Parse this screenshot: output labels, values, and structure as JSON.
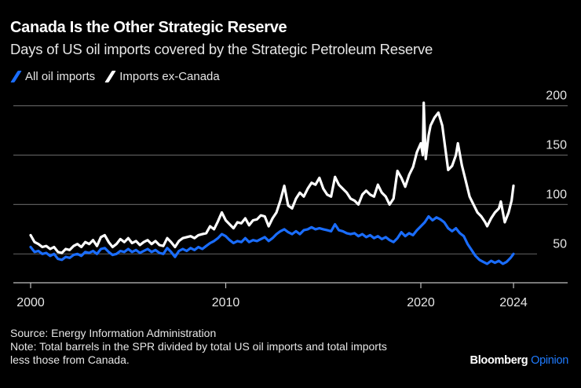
{
  "header": {
    "title": "Canada Is the Other Strategic Reserve",
    "subtitle": "Days of US oil imports covered by the Strategic Petroleum Reserve"
  },
  "legend": [
    {
      "label": "All oil imports",
      "color": "#1a6dff"
    },
    {
      "label": "Imports ex-Canada",
      "color": "#ffffff"
    }
  ],
  "footer": {
    "source": "Source: Energy Information Administration",
    "note_line1": "Note: Total barrels in the SPR divided by total US oil imports and total imports",
    "note_line2": "less those from Canada."
  },
  "brand": {
    "name": "Bloomberg",
    "suffix": "Opinion"
  },
  "chart_data": {
    "type": "line",
    "title": "Canada Is the Other Strategic Reserve",
    "subtitle": "Days of US oil imports covered by the Strategic Petroleum Reserve",
    "xlabel": "",
    "ylabel": "",
    "x_ticks": [
      {
        "value": 2000,
        "label": "2000"
      },
      {
        "value": 2010,
        "label": "2010"
      },
      {
        "value": 2020,
        "label": "2020"
      },
      {
        "value": 2024.75,
        "label": "2024"
      }
    ],
    "y_ticks": [
      50,
      100,
      150,
      200
    ],
    "ylim": [
      20,
      205
    ],
    "xlim": [
      1999.1,
      2027.5
    ],
    "grid": true,
    "y_axis_side": "right",
    "legend_position": "top-left",
    "series": [
      {
        "name": "All oil imports",
        "color": "#1a6dff",
        "points": [
          [
            2000.0,
            57
          ],
          [
            2000.2,
            52
          ],
          [
            2000.4,
            53
          ],
          [
            2000.6,
            50
          ],
          [
            2000.8,
            51
          ],
          [
            2001.0,
            48
          ],
          [
            2001.2,
            50
          ],
          [
            2001.4,
            45
          ],
          [
            2001.6,
            44
          ],
          [
            2001.8,
            47
          ],
          [
            2002.0,
            46
          ],
          [
            2002.2,
            49
          ],
          [
            2002.4,
            50
          ],
          [
            2002.6,
            48
          ],
          [
            2002.8,
            52
          ],
          [
            2003.0,
            51
          ],
          [
            2003.2,
            53
          ],
          [
            2003.4,
            50
          ],
          [
            2003.6,
            55
          ],
          [
            2003.8,
            56
          ],
          [
            2004.0,
            52
          ],
          [
            2004.2,
            49
          ],
          [
            2004.4,
            50
          ],
          [
            2004.6,
            53
          ],
          [
            2004.8,
            52
          ],
          [
            2005.0,
            55
          ],
          [
            2005.2,
            52
          ],
          [
            2005.4,
            54
          ],
          [
            2005.6,
            51
          ],
          [
            2005.8,
            53
          ],
          [
            2006.0,
            55
          ],
          [
            2006.2,
            52
          ],
          [
            2006.4,
            54
          ],
          [
            2006.6,
            51
          ],
          [
            2006.8,
            50
          ],
          [
            2007.0,
            56
          ],
          [
            2007.2,
            52
          ],
          [
            2007.4,
            47
          ],
          [
            2007.6,
            53
          ],
          [
            2007.8,
            55
          ],
          [
            2008.0,
            53
          ],
          [
            2008.2,
            56
          ],
          [
            2008.4,
            54
          ],
          [
            2008.6,
            57
          ],
          [
            2008.8,
            55
          ],
          [
            2009.0,
            58
          ],
          [
            2009.2,
            61
          ],
          [
            2009.4,
            63
          ],
          [
            2009.6,
            66
          ],
          [
            2009.8,
            70
          ],
          [
            2010.0,
            68
          ],
          [
            2010.2,
            64
          ],
          [
            2010.4,
            61
          ],
          [
            2010.6,
            63
          ],
          [
            2010.8,
            62
          ],
          [
            2011.0,
            66
          ],
          [
            2011.2,
            62
          ],
          [
            2011.4,
            64
          ],
          [
            2011.6,
            63
          ],
          [
            2011.8,
            65
          ],
          [
            2012.0,
            67
          ],
          [
            2012.2,
            63
          ],
          [
            2012.4,
            66
          ],
          [
            2012.6,
            70
          ],
          [
            2012.8,
            73
          ],
          [
            2013.0,
            75
          ],
          [
            2013.2,
            72
          ],
          [
            2013.4,
            70
          ],
          [
            2013.6,
            73
          ],
          [
            2013.8,
            70
          ],
          [
            2014.0,
            74
          ],
          [
            2014.2,
            75
          ],
          [
            2014.4,
            77
          ],
          [
            2014.6,
            75
          ],
          [
            2014.8,
            76
          ],
          [
            2015.0,
            75
          ],
          [
            2015.2,
            74
          ],
          [
            2015.4,
            73
          ],
          [
            2015.6,
            80
          ],
          [
            2015.8,
            74
          ],
          [
            2016.0,
            73
          ],
          [
            2016.2,
            71
          ],
          [
            2016.4,
            70
          ],
          [
            2016.6,
            71
          ],
          [
            2016.8,
            68
          ],
          [
            2017.0,
            70
          ],
          [
            2017.2,
            67
          ],
          [
            2017.4,
            69
          ],
          [
            2017.6,
            66
          ],
          [
            2017.8,
            68
          ],
          [
            2018.0,
            65
          ],
          [
            2018.2,
            67
          ],
          [
            2018.4,
            64
          ],
          [
            2018.6,
            62
          ],
          [
            2018.8,
            66
          ],
          [
            2019.0,
            72
          ],
          [
            2019.2,
            68
          ],
          [
            2019.4,
            71
          ],
          [
            2019.6,
            69
          ],
          [
            2019.8,
            74
          ],
          [
            2020.0,
            78
          ],
          [
            2020.2,
            82
          ],
          [
            2020.4,
            88
          ],
          [
            2020.6,
            84
          ],
          [
            2020.8,
            87
          ],
          [
            2021.0,
            85
          ],
          [
            2021.2,
            82
          ],
          [
            2021.4,
            76
          ],
          [
            2021.6,
            73
          ],
          [
            2021.8,
            76
          ],
          [
            2022.0,
            71
          ],
          [
            2022.2,
            68
          ],
          [
            2022.4,
            60
          ],
          [
            2022.6,
            54
          ],
          [
            2022.8,
            48
          ],
          [
            2023.0,
            44
          ],
          [
            2023.2,
            42
          ],
          [
            2023.4,
            40
          ],
          [
            2023.6,
            43
          ],
          [
            2023.8,
            41
          ],
          [
            2024.0,
            43
          ],
          [
            2024.2,
            40
          ],
          [
            2024.4,
            42
          ],
          [
            2024.6,
            46
          ],
          [
            2024.75,
            50
          ]
        ]
      },
      {
        "name": "Imports ex-Canada",
        "color": "#ffffff",
        "points": [
          [
            2000.0,
            69
          ],
          [
            2000.2,
            62
          ],
          [
            2000.4,
            60
          ],
          [
            2000.6,
            57
          ],
          [
            2000.8,
            58
          ],
          [
            2001.0,
            55
          ],
          [
            2001.2,
            57
          ],
          [
            2001.4,
            52
          ],
          [
            2001.6,
            51
          ],
          [
            2001.8,
            55
          ],
          [
            2002.0,
            54
          ],
          [
            2002.2,
            58
          ],
          [
            2002.4,
            60
          ],
          [
            2002.6,
            57
          ],
          [
            2002.8,
            62
          ],
          [
            2003.0,
            60
          ],
          [
            2003.2,
            64
          ],
          [
            2003.4,
            58
          ],
          [
            2003.6,
            67
          ],
          [
            2003.8,
            69
          ],
          [
            2004.0,
            62
          ],
          [
            2004.2,
            57
          ],
          [
            2004.4,
            60
          ],
          [
            2004.6,
            65
          ],
          [
            2004.8,
            62
          ],
          [
            2005.0,
            66
          ],
          [
            2005.2,
            61
          ],
          [
            2005.4,
            63
          ],
          [
            2005.6,
            59
          ],
          [
            2005.8,
            62
          ],
          [
            2006.0,
            64
          ],
          [
            2006.2,
            60
          ],
          [
            2006.4,
            63
          ],
          [
            2006.6,
            59
          ],
          [
            2006.8,
            58
          ],
          [
            2007.0,
            66
          ],
          [
            2007.2,
            62
          ],
          [
            2007.4,
            57
          ],
          [
            2007.6,
            63
          ],
          [
            2007.8,
            66
          ],
          [
            2008.0,
            67
          ],
          [
            2008.2,
            68
          ],
          [
            2008.4,
            66
          ],
          [
            2008.6,
            69
          ],
          [
            2008.8,
            70
          ],
          [
            2009.0,
            71
          ],
          [
            2009.2,
            78
          ],
          [
            2009.4,
            75
          ],
          [
            2009.6,
            83
          ],
          [
            2009.8,
            92
          ],
          [
            2010.0,
            84
          ],
          [
            2010.2,
            80
          ],
          [
            2010.4,
            76
          ],
          [
            2010.6,
            82
          ],
          [
            2010.8,
            81
          ],
          [
            2011.0,
            86
          ],
          [
            2011.2,
            79
          ],
          [
            2011.4,
            84
          ],
          [
            2011.6,
            85
          ],
          [
            2011.8,
            89
          ],
          [
            2012.0,
            88
          ],
          [
            2012.2,
            78
          ],
          [
            2012.4,
            86
          ],
          [
            2012.6,
            92
          ],
          [
            2012.8,
            104
          ],
          [
            2013.0,
            119
          ],
          [
            2013.2,
            99
          ],
          [
            2013.4,
            96
          ],
          [
            2013.6,
            106
          ],
          [
            2013.8,
            112
          ],
          [
            2014.0,
            108
          ],
          [
            2014.2,
            116
          ],
          [
            2014.4,
            122
          ],
          [
            2014.6,
            120
          ],
          [
            2014.8,
            127
          ],
          [
            2015.0,
            116
          ],
          [
            2015.2,
            110
          ],
          [
            2015.4,
            108
          ],
          [
            2015.6,
            128
          ],
          [
            2015.8,
            120
          ],
          [
            2016.0,
            116
          ],
          [
            2016.2,
            112
          ],
          [
            2016.4,
            106
          ],
          [
            2016.6,
            104
          ],
          [
            2016.8,
            100
          ],
          [
            2017.0,
            110
          ],
          [
            2017.2,
            114
          ],
          [
            2017.4,
            110
          ],
          [
            2017.6,
            108
          ],
          [
            2017.8,
            120
          ],
          [
            2018.0,
            112
          ],
          [
            2018.2,
            108
          ],
          [
            2018.4,
            100
          ],
          [
            2018.6,
            106
          ],
          [
            2018.8,
            134
          ],
          [
            2019.0,
            127
          ],
          [
            2019.2,
            118
          ],
          [
            2019.4,
            130
          ],
          [
            2019.6,
            138
          ],
          [
            2019.8,
            153
          ],
          [
            2020.0,
            162
          ],
          [
            2020.1,
            150
          ],
          [
            2020.15,
            203
          ],
          [
            2020.25,
            146
          ],
          [
            2020.4,
            170
          ],
          [
            2020.5,
            180
          ],
          [
            2020.7,
            188
          ],
          [
            2020.9,
            193
          ],
          [
            2021.1,
            180
          ],
          [
            2021.3,
            150
          ],
          [
            2021.4,
            135
          ],
          [
            2021.6,
            139
          ],
          [
            2021.8,
            150
          ],
          [
            2021.9,
            162
          ],
          [
            2022.1,
            140
          ],
          [
            2022.3,
            124
          ],
          [
            2022.5,
            108
          ],
          [
            2022.7,
            100
          ],
          [
            2022.9,
            92
          ],
          [
            2023.1,
            88
          ],
          [
            2023.3,
            82
          ],
          [
            2023.4,
            78
          ],
          [
            2023.6,
            86
          ],
          [
            2023.8,
            92
          ],
          [
            2024.0,
            96
          ],
          [
            2024.1,
            103
          ],
          [
            2024.3,
            82
          ],
          [
            2024.5,
            92
          ],
          [
            2024.65,
            104
          ],
          [
            2024.75,
            119
          ]
        ]
      }
    ]
  }
}
